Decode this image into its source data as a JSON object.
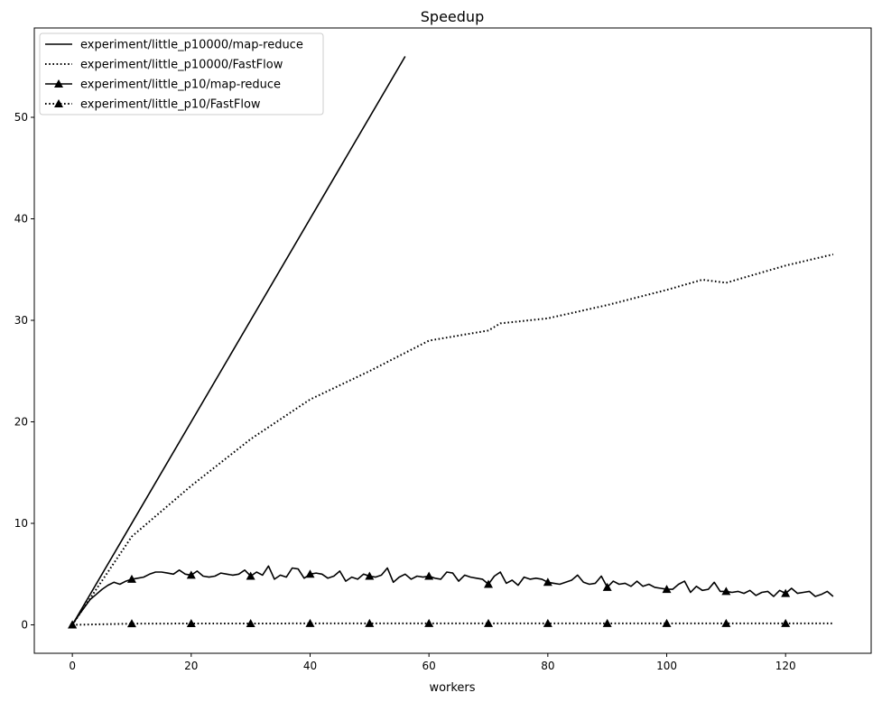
{
  "chart_data": {
    "type": "line",
    "title": "Speedup",
    "xlabel": "workers",
    "ylabel": "",
    "xlim": [
      -6.4,
      134.4
    ],
    "ylim": [
      -2.8,
      58.8
    ],
    "x_ticks": [
      0,
      20,
      40,
      60,
      80,
      100,
      120
    ],
    "y_ticks": [
      0,
      10,
      20,
      30,
      40,
      50
    ],
    "legend_position": "top-left",
    "series": [
      {
        "name": "experiment/little_p10000/map-reduce",
        "line_style": "solid",
        "marker": "none",
        "color": "#000000",
        "x": [
          0,
          56
        ],
        "y": [
          0,
          56
        ]
      },
      {
        "name": "experiment/little_p10000/FastFlow",
        "line_style": "dotted",
        "marker": "none",
        "color": "#000000",
        "x": [
          0,
          10,
          20,
          30,
          40,
          50,
          60,
          70,
          72,
          80,
          90,
          100,
          106,
          110,
          120,
          128
        ],
        "y": [
          0,
          8.7,
          13.7,
          18.3,
          22.2,
          25.0,
          28.0,
          29.0,
          29.7,
          30.2,
          31.5,
          33.0,
          34.0,
          33.7,
          35.4,
          36.5
        ]
      },
      {
        "name": "experiment/little_p10/map-reduce",
        "line_style": "solid",
        "marker": "triangle",
        "color": "#000000",
        "x": [
          0,
          1,
          2,
          3,
          4,
          5,
          6,
          7,
          8,
          9,
          10,
          11,
          12,
          13,
          14,
          15,
          16,
          17,
          18,
          19,
          20,
          21,
          22,
          23,
          24,
          25,
          26,
          27,
          28,
          29,
          30,
          31,
          32,
          33,
          34,
          35,
          36,
          37,
          38,
          39,
          40,
          41,
          42,
          43,
          44,
          45,
          46,
          47,
          48,
          49,
          50,
          51,
          52,
          53,
          54,
          55,
          56,
          57,
          58,
          59,
          60,
          61,
          62,
          63,
          64,
          65,
          66,
          67,
          68,
          69,
          70,
          71,
          72,
          73,
          74,
          75,
          76,
          77,
          78,
          79,
          80,
          81,
          82,
          83,
          84,
          85,
          86,
          87,
          88,
          89,
          90,
          91,
          92,
          93,
          94,
          95,
          96,
          97,
          98,
          99,
          100,
          101,
          102,
          103,
          104,
          105,
          106,
          107,
          108,
          109,
          110,
          111,
          112,
          113,
          114,
          115,
          116,
          117,
          118,
          119,
          120,
          121,
          122,
          123,
          124,
          125,
          126,
          127,
          128
        ],
        "y": [
          0,
          0.9,
          1.7,
          2.5,
          3.0,
          3.5,
          3.9,
          4.2,
          4.0,
          4.3,
          4.5,
          4.6,
          4.7,
          5.0,
          5.2,
          5.2,
          5.1,
          5.0,
          5.4,
          5.0,
          4.9,
          5.3,
          4.8,
          4.7,
          4.8,
          5.1,
          5.0,
          4.9,
          5.0,
          5.4,
          4.8,
          5.2,
          4.9,
          5.8,
          4.5,
          4.9,
          4.7,
          5.6,
          5.5,
          4.6,
          5.0,
          5.1,
          5.0,
          4.6,
          4.8,
          5.3,
          4.3,
          4.7,
          4.5,
          5.0,
          4.8,
          4.7,
          4.9,
          5.6,
          4.2,
          4.7,
          5.0,
          4.5,
          4.8,
          4.7,
          4.8,
          4.6,
          4.5,
          5.2,
          5.1,
          4.3,
          4.9,
          4.7,
          4.6,
          4.5,
          4.0,
          4.8,
          5.2,
          4.1,
          4.4,
          3.9,
          4.7,
          4.5,
          4.6,
          4.5,
          4.2,
          4.1,
          4.0,
          4.2,
          4.4,
          4.9,
          4.2,
          4.0,
          4.1,
          4.8,
          3.7,
          4.3,
          4.0,
          4.1,
          3.8,
          4.3,
          3.8,
          4.0,
          3.7,
          3.6,
          3.5,
          3.5,
          4.0,
          4.3,
          3.2,
          3.8,
          3.4,
          3.5,
          4.2,
          3.3,
          3.3,
          3.2,
          3.3,
          3.1,
          3.4,
          2.9,
          3.2,
          3.3,
          2.8,
          3.4,
          3.1,
          3.6,
          3.1,
          3.2,
          3.3,
          2.8,
          3.0,
          3.3,
          2.8
        ],
        "marker_x": [
          0,
          10,
          20,
          30,
          40,
          50,
          60,
          70,
          80,
          90,
          100,
          110,
          120
        ]
      },
      {
        "name": "experiment/little_p10/FastFlow",
        "line_style": "dotted",
        "marker": "triangle",
        "color": "#000000",
        "x": [
          0,
          10,
          20,
          30,
          40,
          50,
          60,
          70,
          80,
          90,
          100,
          110,
          120,
          128
        ],
        "y": [
          0,
          0.12,
          0.13,
          0.13,
          0.14,
          0.14,
          0.14,
          0.14,
          0.14,
          0.14,
          0.14,
          0.14,
          0.14,
          0.14
        ],
        "marker_x": [
          0,
          10,
          20,
          30,
          40,
          50,
          60,
          70,
          80,
          90,
          100,
          110,
          120
        ]
      }
    ]
  }
}
